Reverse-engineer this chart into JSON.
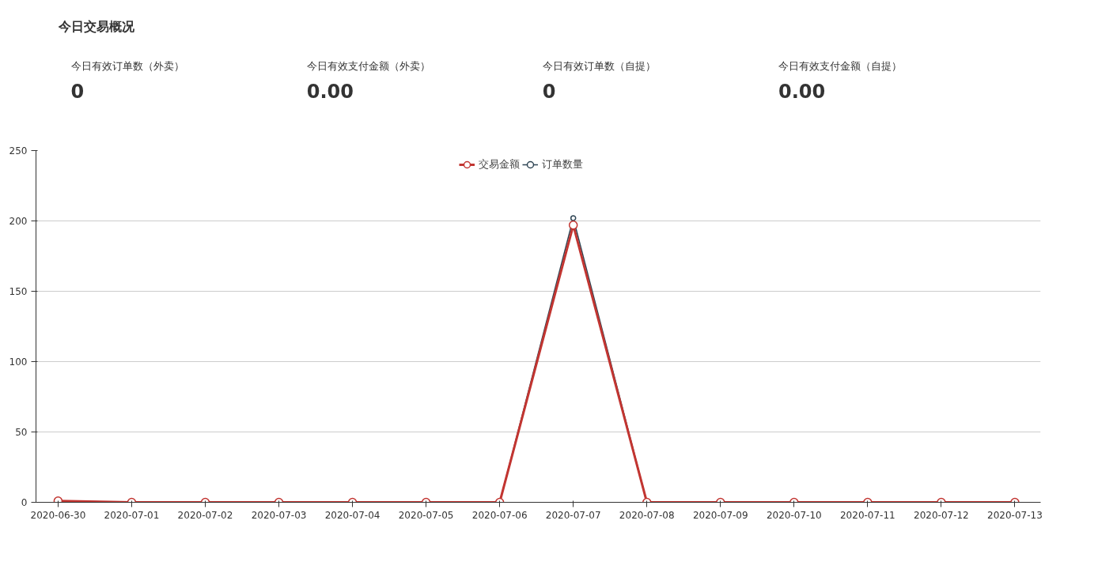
{
  "chart_data": [
    {
      "type": "other",
      "title": "今日交易概况",
      "annotations": [
        "今日有效订单数（外卖）",
        "0",
        "今日有效支付金额（外卖）",
        "0.00",
        "今日有效订单数（自提）",
        "0",
        "今日有效支付金额（自提）",
        "0.00"
      ]
    },
    {
      "type": "line",
      "categories": [
        "2020-06-30",
        "2020-07-01",
        "2020-07-02",
        "2020-07-03",
        "2020-07-04",
        "2020-07-05",
        "2020-07-06",
        "2020-07-07",
        "2020-07-08",
        "2020-07-09",
        "2020-07-10",
        "2020-07-11",
        "2020-07-12",
        "2020-07-13"
      ],
      "series": [
        {
          "name": "交易金额",
          "color": "#c23531",
          "values": [
            1,
            0,
            0,
            0,
            0,
            0,
            0,
            197,
            0,
            0,
            0,
            0,
            0,
            0
          ]
        },
        {
          "name": "订单数量",
          "color": "#2f4554",
          "values": [
            1,
            0,
            0,
            0,
            0,
            0,
            0,
            202,
            0,
            0,
            0,
            0,
            0,
            0
          ]
        }
      ],
      "ylim": [
        0,
        250
      ],
      "yticks": [
        0,
        50,
        100,
        150,
        200,
        250
      ],
      "grid": "y",
      "legend": "top",
      "marker": "circle",
      "line_style": "solid"
    }
  ]
}
